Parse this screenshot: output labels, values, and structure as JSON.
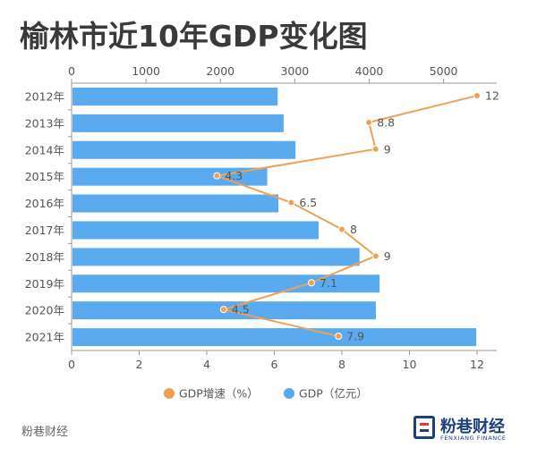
{
  "header": {
    "title": "榆林市近10年GDP变化图"
  },
  "footer": {
    "source": "粉巷财经"
  },
  "logo": {
    "text": "粉巷财经",
    "subtitle": "FENXIANG FINANCE"
  },
  "colors": {
    "bar": "#5aaaf0",
    "line": "#f0a055",
    "axis": "#999999",
    "text": "#555555"
  },
  "chart_data": {
    "type": "bar",
    "orientation": "horizontal",
    "categories": [
      "2012年",
      "2013年",
      "2014年",
      "2015年",
      "2016年",
      "2017年",
      "2018年",
      "2019年",
      "2020年",
      "2021年"
    ],
    "series": [
      {
        "name": "GDP（亿元）",
        "type": "bar",
        "axis": "top",
        "values": [
          2770,
          2850,
          3010,
          2630,
          2780,
          3320,
          3870,
          4140,
          4090,
          5440
        ]
      },
      {
        "name": "GDP增速（%）",
        "type": "line",
        "axis": "bottom",
        "values": [
          12,
          8.8,
          9,
          4.3,
          6.5,
          8,
          9,
          7.1,
          4.5,
          7.9
        ],
        "labels": [
          "12",
          "8.8",
          "9",
          "4.3",
          "6.5",
          "8",
          "9",
          "7.1",
          "4.5",
          "7.9"
        ]
      }
    ],
    "top_axis": {
      "range": [
        0,
        5450
      ],
      "ticks": [
        0,
        1000,
        2000,
        3000,
        4000,
        5000
      ],
      "tick_labels": [
        "0",
        "1000",
        "2000",
        "3000",
        "4000",
        "5000"
      ]
    },
    "bottom_axis": {
      "range": [
        0,
        12
      ],
      "ticks": [
        0,
        2,
        4,
        6,
        8,
        10,
        12
      ],
      "tick_labels": [
        "0",
        "2",
        "4",
        "6",
        "8",
        "10",
        "12"
      ]
    },
    "legend": {
      "placement": "bottom",
      "entries": [
        "GDP增速（%）",
        "GDP（亿元）"
      ]
    },
    "grid": false
  }
}
